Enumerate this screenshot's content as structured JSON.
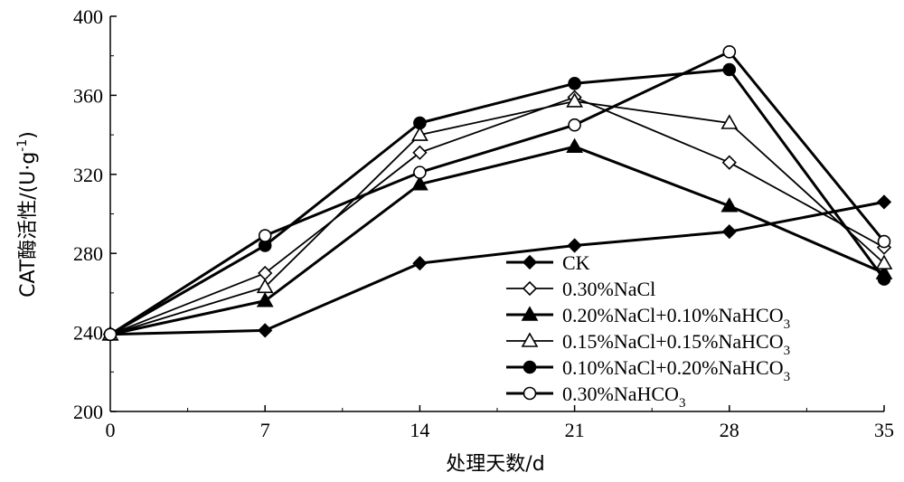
{
  "chart_data": {
    "type": "line",
    "xlabel": "处理天数/d",
    "ylabel": "CAT酶活性/(U·g-1)",
    "ylabel_parts": {
      "main": "CAT酶活性/(U·g",
      "sup": "-1",
      "end": ")"
    },
    "x": [
      0,
      7,
      14,
      21,
      28,
      35
    ],
    "x_ticks": [
      "0",
      "7",
      "14",
      "21",
      "28",
      "35"
    ],
    "y_ticks": [
      "200",
      "240",
      "280",
      "320",
      "360",
      "400"
    ],
    "xlim": [
      0,
      35
    ],
    "ylim": [
      200,
      400
    ],
    "grid": false,
    "legend_placement": "bottom-right inside plot",
    "series": [
      {
        "name": "CK",
        "label_parts": {
          "main": "CK",
          "sub": ""
        },
        "marker": "diamond-filled",
        "stroke_width": 3,
        "values": [
          239,
          241,
          275,
          284,
          291,
          306
        ]
      },
      {
        "name": "0.30%NaCl",
        "label_parts": {
          "main": "0.30%NaCl",
          "sub": ""
        },
        "marker": "diamond-open",
        "stroke_width": 1.8,
        "values": [
          239,
          270,
          331,
          359,
          326,
          283
        ]
      },
      {
        "name": "0.20%NaCl+0.10%NaHCO3",
        "label_parts": {
          "main": "0.20%NaCl+0.10%NaHCO",
          "sub": "3"
        },
        "marker": "triangle-filled",
        "stroke_width": 3,
        "values": [
          239,
          256,
          315,
          334,
          304,
          270
        ]
      },
      {
        "name": "0.15%NaCl+0.15%NaHCO3",
        "label_parts": {
          "main": "0.15%NaCl+0.15%NaHCO",
          "sub": "3"
        },
        "marker": "triangle-open",
        "stroke_width": 1.8,
        "values": [
          239,
          263,
          340,
          357,
          346,
          275
        ]
      },
      {
        "name": "0.10%NaCl+0.20%NaHCO3",
        "label_parts": {
          "main": "0.10%NaCl+0.20%NaHCO",
          "sub": "3"
        },
        "marker": "circle-filled",
        "stroke_width": 3,
        "values": [
          239,
          284,
          346,
          366,
          373,
          267
        ]
      },
      {
        "name": "0.30%NaHCO3",
        "label_parts": {
          "main": "0.30%NaHCO",
          "sub": "3"
        },
        "marker": "circle-open",
        "stroke_width": 3,
        "values": [
          239,
          289,
          321,
          345,
          382,
          286
        ]
      }
    ]
  }
}
